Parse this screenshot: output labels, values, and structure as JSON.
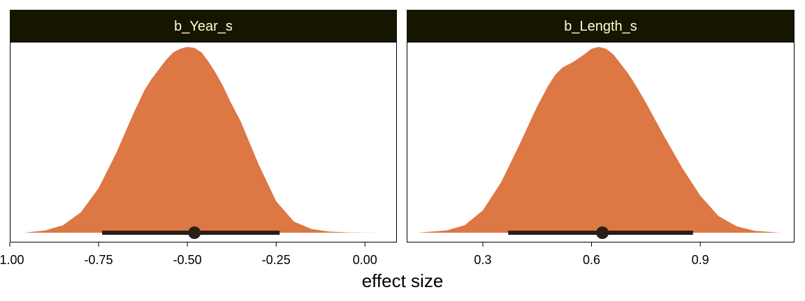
{
  "colors": {
    "strip_bg": "#151500",
    "strip_text": "#ffffcc",
    "density_fill": "#dd7744",
    "interval": "#2a1f14",
    "frame": "#000000"
  },
  "xlabel": "effect size",
  "chart_data": [
    {
      "type": "area",
      "panel_title": "b_Year_s",
      "xlim": [
        -1.0,
        0.09
      ],
      "ylim": [
        0,
        1.08
      ],
      "xticks": [
        -1.0,
        -0.75,
        -0.5,
        -0.25,
        0.0
      ],
      "xtick_labels": [
        "-1.00",
        "-0.75",
        "-0.50",
        "-0.25",
        "0.00"
      ],
      "density": {
        "x": [
          -0.96,
          -0.9,
          -0.85,
          -0.8,
          -0.75,
          -0.7,
          -0.65,
          -0.62,
          -0.6,
          -0.58,
          -0.56,
          -0.54,
          -0.52,
          -0.5,
          -0.48,
          -0.46,
          -0.44,
          -0.42,
          -0.4,
          -0.38,
          -0.35,
          -0.3,
          -0.25,
          -0.2,
          -0.15,
          -0.1,
          -0.05,
          0.0,
          0.06
        ],
        "y": [
          0.0,
          0.012,
          0.04,
          0.11,
          0.24,
          0.43,
          0.65,
          0.77,
          0.83,
          0.88,
          0.93,
          0.97,
          0.99,
          1.0,
          0.995,
          0.97,
          0.92,
          0.86,
          0.79,
          0.71,
          0.6,
          0.37,
          0.17,
          0.06,
          0.02,
          0.006,
          0.002,
          0.0005,
          0.0
        ]
      },
      "point": -0.48,
      "interval": [
        -0.74,
        -0.24
      ]
    },
    {
      "type": "area",
      "panel_title": "b_Length_s",
      "xlim": [
        0.09,
        1.16
      ],
      "ylim": [
        0,
        1.08
      ],
      "xticks": [
        0.3,
        0.6,
        0.9
      ],
      "xtick_labels": [
        "0.3",
        "0.6",
        "0.9"
      ],
      "density": {
        "x": [
          0.12,
          0.2,
          0.25,
          0.3,
          0.35,
          0.4,
          0.45,
          0.48,
          0.5,
          0.52,
          0.55,
          0.58,
          0.6,
          0.62,
          0.64,
          0.66,
          0.68,
          0.7,
          0.72,
          0.75,
          0.8,
          0.85,
          0.9,
          0.95,
          1.0,
          1.05,
          1.12
        ],
        "y": [
          0.0,
          0.012,
          0.04,
          0.12,
          0.27,
          0.47,
          0.68,
          0.79,
          0.85,
          0.89,
          0.92,
          0.96,
          0.99,
          1.0,
          0.99,
          0.96,
          0.91,
          0.86,
          0.8,
          0.7,
          0.52,
          0.35,
          0.2,
          0.09,
          0.035,
          0.01,
          0.0
        ]
      },
      "point": 0.63,
      "interval": [
        0.37,
        0.88
      ]
    }
  ]
}
